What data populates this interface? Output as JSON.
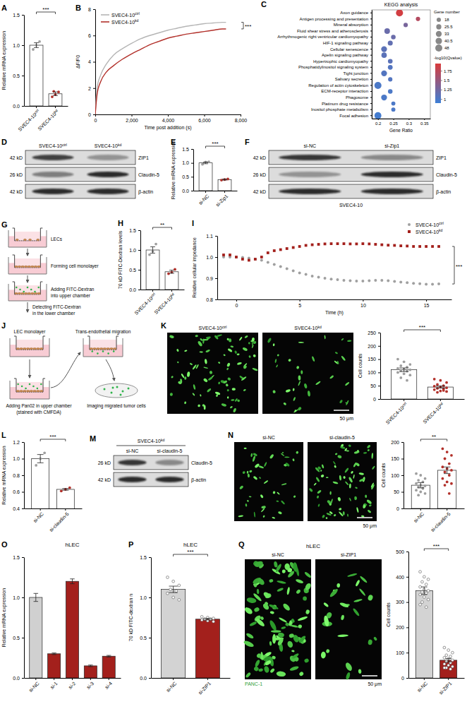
{
  "chart_data": [
    {
      "panel": "A",
      "type": "bar",
      "categories": [
        "SVEC4-10ctrl",
        "SVEC4-10kd"
      ],
      "values": [
        1.0,
        0.2
      ],
      "errors": [
        0.04,
        0.03
      ],
      "points": [
        [
          0.93,
          1.0,
          1.06
        ],
        [
          0.15,
          0.19,
          0.23,
          0.24
        ]
      ],
      "colors": [
        "#9e9e9e",
        "#b2302a"
      ],
      "y_label": "Relative mRNA expression",
      "ylim": [
        0,
        1.5
      ],
      "yticks": [
        {
          "value": 0,
          "label": "0.0"
        },
        {
          "value": 0.5,
          "label": "0.5"
        },
        {
          "value": 1,
          "label": "1.0"
        },
        {
          "value": 1.5,
          "label": "1.5"
        }
      ],
      "annotation": "***"
    },
    {
      "panel": "B",
      "type": "line",
      "x": [
        0,
        100,
        300,
        600,
        1000,
        1500,
        2000,
        2500,
        3000,
        3500,
        4000,
        4500,
        5000,
        5500,
        6000,
        6500,
        7000,
        7200
      ],
      "series": [
        {
          "name": "SVEC4-10ctrl",
          "color": "#b5b5b5",
          "values": [
            0,
            2.0,
            3.0,
            3.8,
            4.5,
            5.0,
            5.4,
            5.75,
            6.0,
            6.2,
            6.4,
            6.55,
            6.7,
            6.8,
            6.9,
            6.95,
            7.0,
            7.0
          ]
        },
        {
          "name": "SVEC4-10kd",
          "color": "#b2302a",
          "values": [
            0,
            1.5,
            2.5,
            3.2,
            3.7,
            4.2,
            4.6,
            4.95,
            5.3,
            5.55,
            5.8,
            5.95,
            6.1,
            6.2,
            6.3,
            6.4,
            6.5,
            6.5
          ]
        }
      ],
      "x_label": "Time post addition (s)",
      "y_label": "ΔF/F0",
      "xlim": [
        0,
        8000
      ],
      "xticks": [
        0,
        {
          "value": 2000,
          "label": "2,000"
        },
        {
          "value": 4000,
          "label": "4,000"
        },
        {
          "value": 6000,
          "label": "6,000"
        },
        {
          "value": 8000,
          "label": "8,000"
        }
      ],
      "ylim": [
        0,
        8
      ],
      "yticks": [
        0,
        2,
        4,
        6,
        8
      ],
      "legend": "upper left",
      "annotation": "***"
    },
    {
      "panel": "C",
      "type": "bubble",
      "title": "KEGG analysis",
      "orientation": "horizontal",
      "categories": [
        "Axon guidance",
        "Antigen processing and presentation",
        "Mineral absorption",
        "Fluid shear stress and atherosclerosis",
        "Arrhythmogenic right ventricular cardiomyopathy",
        "HIF-1 signaling pathway",
        "Cellular senescence",
        "Apelin signaling pathway",
        "Hypertrophic cardiomyopathy",
        "Phosphatidylinositol signaling system",
        "Tight junction",
        "Salivary secretion",
        "Regulation of actin cytoskeleton",
        "ECM-receptor interaction",
        "Phagosome",
        "Platinum drug resistance",
        "Inositol phosphate metabolism",
        "Focal adhesion"
      ],
      "values": [
        0.27,
        0.33,
        0.29,
        0.23,
        0.25,
        0.24,
        0.22,
        0.22,
        0.24,
        0.24,
        0.22,
        0.24,
        0.2,
        0.24,
        0.22,
        0.25,
        0.25,
        0.2
      ],
      "sizes": [
        48,
        18,
        18,
        30,
        20,
        24,
        33,
        28,
        21,
        22,
        33,
        18,
        48,
        20,
        33,
        16,
        16,
        46
      ],
      "color_values": [
        1.9,
        1.7,
        1.3,
        1.2,
        1.2,
        1.15,
        1.1,
        1.1,
        1.1,
        1.05,
        1.05,
        1.05,
        1.0,
        1.0,
        1.0,
        1.0,
        1.0,
        0.95
      ],
      "x_label": "Gene Ratio",
      "xlim": [
        0.18,
        0.37
      ],
      "xticks": [
        0.2,
        0.25,
        0.3,
        0.35
      ],
      "size_title": "Gene number",
      "size_legend": [
        18,
        25.5,
        33,
        40.5,
        48
      ],
      "color_title": "-log10(Qvalue)",
      "colorbar_lim": [
        0.9,
        1.95
      ],
      "colorbar_ticks": [
        1,
        1.25,
        1.5,
        1.75
      ]
    },
    {
      "panel": "E",
      "type": "bar",
      "categories": [
        "si-NC",
        "si-Zip1"
      ],
      "values": [
        1.0,
        0.4
      ],
      "errors": [
        0.03,
        0.02
      ],
      "points": [
        [
          0.95,
          1.03,
          1.04
        ],
        [
          0.38,
          0.4,
          0.42
        ]
      ],
      "colors": [
        "#9e9e9e",
        "#b2302a"
      ],
      "y_label": "Relative mRNA expression",
      "ylim": [
        0,
        1.5
      ],
      "yticks": [
        {
          "value": 0,
          "label": "0.0"
        },
        {
          "value": 0.5,
          "label": "0.5"
        },
        {
          "value": 1,
          "label": "1.0"
        },
        {
          "value": 1.5,
          "label": "1.5"
        }
      ],
      "annotation": "***"
    },
    {
      "panel": "H",
      "type": "bar",
      "categories": [
        "SVEC4-10ctrl",
        "SVEC4-10kd"
      ],
      "values": [
        1.0,
        0.45
      ],
      "errors": [
        0.08,
        0.04
      ],
      "points": [
        [
          0.88,
          0.97,
          1.15
        ],
        [
          0.4,
          0.44,
          0.51
        ]
      ],
      "colors": [
        "#9e9e9e",
        "#b2302a"
      ],
      "y_label": "70 kD FITC-Dextran levels",
      "ylim": [
        0,
        1.5
      ],
      "yticks": [
        {
          "value": 0,
          "label": "0.0"
        },
        {
          "value": 0.5,
          "label": "0.5"
        },
        {
          "value": 1,
          "label": "1.0"
        },
        {
          "value": 1.5,
          "label": "1.5"
        }
      ],
      "annotation": "**"
    },
    {
      "panel": "I",
      "type": "line",
      "x": [
        -1,
        -0.5,
        0,
        0.5,
        1,
        1.5,
        2,
        2.5,
        3,
        3.5,
        4,
        4.5,
        5,
        5.5,
        6,
        6.5,
        7,
        7.5,
        8,
        8.5,
        9,
        9.5,
        10,
        10.5,
        11,
        11.5,
        12,
        12.5,
        13,
        13.5,
        14,
        14.5,
        15,
        15.5,
        16
      ],
      "series": [
        {
          "name": "SVEC4-10ctrl",
          "color": "#a0a0a0",
          "marker": "circle",
          "values": [
            1.0,
            1.0,
            1.0,
            0.998,
            0.995,
            0.99,
            0.985,
            0.975,
            0.965,
            0.955,
            0.945,
            0.935,
            0.925,
            0.918,
            0.91,
            0.905,
            0.9,
            0.896,
            0.893,
            0.89,
            0.888,
            0.887,
            0.887,
            0.888,
            0.89,
            0.89,
            0.888,
            0.885,
            0.882,
            0.879,
            0.876,
            0.874,
            0.872,
            0.872,
            0.873
          ]
        },
        {
          "name": "SVEC4-10kd",
          "color": "#a3201c",
          "marker": "square",
          "values": [
            1.01,
            1.01,
            1.0,
            0.99,
            0.985,
            0.99,
            1.0,
            1.02,
            1.03,
            1.035,
            1.04,
            1.045,
            1.05,
            1.055,
            1.058,
            1.06,
            1.062,
            1.063,
            1.063,
            1.063,
            1.062,
            1.062,
            1.063,
            1.062,
            1.06,
            1.058,
            1.056,
            1.055,
            1.053,
            1.052,
            1.05,
            1.05,
            1.05,
            1.05,
            1.05
          ]
        }
      ],
      "x_label": "Time (h)",
      "y_label": "Relative cellular impedance",
      "xlim": [
        -1.5,
        17
      ],
      "xticks": [
        0,
        5,
        10,
        15
      ],
      "ylim": [
        0.8,
        1.1
      ],
      "yticks": [
        0.8,
        0.9,
        {
          "value": 1,
          "label": "1.0"
        },
        1.1
      ],
      "legend": "upper right",
      "annotation": "***"
    },
    {
      "type": "bar",
      "categories": [
        "SVEC4-10ctrl",
        "SVEC4-10kd"
      ],
      "values": [
        110,
        45
      ],
      "errors": [
        7,
        4
      ],
      "points": [
        [
          150,
          140,
          130,
          125,
          120,
          115,
          112,
          110,
          108,
          105,
          100,
          95,
          90,
          80,
          70
        ],
        [
          75,
          70,
          62,
          55,
          50,
          48,
          45,
          42,
          40,
          38,
          35,
          30,
          28,
          25,
          32
        ]
      ],
      "colors": [
        "#9e9e9e",
        "#b2302a"
      ],
      "y_label": "Cell counts",
      "ylim": [
        0,
        250
      ],
      "yticks": [
        0,
        50,
        100,
        150,
        200,
        250
      ],
      "annotation": "***"
    },
    {
      "panel": "L",
      "type": "bar",
      "categories": [
        "si-NC",
        "si-claudin-5"
      ],
      "values": [
        1.0,
        0.63
      ],
      "errors": [
        0.05,
        0.01
      ],
      "points": [
        [
          0.92,
          1.0,
          1.07
        ],
        [
          0.61,
          0.63,
          0.65
        ]
      ],
      "colors": [
        "#9e9e9e",
        "#b2302a"
      ],
      "y_label": "Relative mRNA expression",
      "ylim": [
        0.4,
        1.2
      ],
      "yticks": [
        0.4,
        0.6,
        0.8,
        {
          "value": 1,
          "label": "1.0"
        },
        1.2
      ],
      "annotation": "***"
    },
    {
      "type": "bar",
      "categories": [
        "si-NC",
        "si-claudin-5"
      ],
      "values": [
        70,
        115
      ],
      "errors": [
        8,
        10
      ],
      "points": [
        [
          105,
          100,
          90,
          85,
          80,
          75,
          70,
          68,
          65,
          60,
          55,
          50,
          45,
          40,
          62
        ],
        [
          180,
          170,
          160,
          150,
          135,
          125,
          120,
          115,
          110,
          100,
          90,
          80,
          75,
          70,
          45
        ]
      ],
      "colors": [
        "#9e9e9e",
        "#b2302a"
      ],
      "y_label": "Cell counts",
      "ylim": [
        0,
        200
      ],
      "yticks": [
        0,
        50,
        100,
        150,
        200
      ],
      "annotation": "**"
    },
    {
      "panel": "O",
      "type": "bar",
      "title": "hLEC",
      "categories": [
        "si-NC",
        "si-1",
        "si-2",
        "si-3",
        "si-4"
      ],
      "values": [
        1.0,
        0.3,
        1.2,
        0.15,
        0.27
      ],
      "errors": [
        0.05,
        0.01,
        0.03,
        0.01,
        0.01
      ],
      "colors": [
        "#d0d0d0",
        "#a3201c",
        "#a3201c",
        "#a3201c",
        "#a3201c"
      ],
      "marker": "open",
      "y_label": "Relative mRNA expression",
      "ylim": [
        0,
        1.5
      ],
      "yticks": [
        {
          "value": 0,
          "label": "0.0"
        },
        {
          "value": 0.5,
          "label": "0.5"
        },
        {
          "value": 1,
          "label": "1.0"
        },
        {
          "value": 1.5,
          "label": "1.5"
        }
      ]
    },
    {
      "panel": "P",
      "type": "bar",
      "title": "hLEC",
      "categories": [
        "si-NC",
        "si-ZIP1"
      ],
      "values": [
        1.1,
        0.73
      ],
      "errors": [
        0.04,
        0.01
      ],
      "points": [
        [
          1.25,
          1.2,
          1.15,
          1.1,
          1.08,
          1.05,
          1.0,
          0.97
        ],
        [
          0.76,
          0.75,
          0.74,
          0.73,
          0.73,
          0.72,
          0.71,
          0.7
        ]
      ],
      "colors": [
        "#d3d3d3",
        "#a3201c"
      ],
      "marker": "open",
      "y_label": "70 kD FITC-dextran n",
      "ylim": [
        0,
        1.5
      ],
      "yticks": [
        {
          "value": 0,
          "label": "0.0"
        },
        {
          "value": 0.5,
          "label": "0.5"
        },
        {
          "value": 1,
          "label": "1.0"
        },
        {
          "value": 1.5,
          "label": "1.5"
        }
      ],
      "annotation": "***"
    },
    {
      "type": "bar",
      "categories": [
        "si-NC",
        "si-ZIP1"
      ],
      "values": [
        345,
        70
      ],
      "errors": [
        15,
        7
      ],
      "points": [
        [
          420,
          400,
          390,
          380,
          370,
          360,
          350,
          345,
          340,
          335,
          330,
          320,
          310,
          300,
          280,
          290
        ],
        [
          120,
          110,
          100,
          90,
          85,
          80,
          75,
          70,
          65,
          60,
          55,
          50,
          45,
          40,
          35,
          40
        ]
      ],
      "colors": [
        "#d3d3d3",
        "#a3201c"
      ],
      "marker": "open",
      "y_label": "Cell counts",
      "ylim": [
        0,
        500
      ],
      "yticks": [
        0,
        100,
        200,
        300,
        400,
        500
      ],
      "annotation": "***"
    }
  ],
  "blots": [
    {
      "panel": "D",
      "lanes": [
        "SVEC4-10ctrl",
        "SVEC4-10kd"
      ],
      "rows": [
        {
          "size_label": "42 kD",
          "name": "ZIP1",
          "intensity": [
            0.75,
            0.35
          ]
        },
        {
          "size_label": "26 kD",
          "name": "Claudin-5",
          "intensity": [
            0.45,
            0.85
          ]
        },
        {
          "size_label": "42 kD",
          "name": "β-actin",
          "intensity": [
            0.85,
            0.85
          ]
        }
      ]
    },
    {
      "panel": "F",
      "lanes": [
        "si-NC",
        "si-Zip1"
      ],
      "rows": [
        {
          "size_label": "42 kD",
          "name": "ZIP1",
          "intensity": [
            0.8,
            0.4
          ]
        },
        {
          "size_label": "26 kD",
          "name": "Claudin-5",
          "intensity": [
            0.35,
            0.85
          ]
        },
        {
          "size_label": "42 kD",
          "name": "β-actin",
          "intensity": [
            0.85,
            0.85
          ]
        }
      ],
      "caption": "SVEC4-10"
    },
    {
      "panel": "M",
      "header": "SVEC4-10kd",
      "lanes": [
        "si-NC",
        "si-claudin-5"
      ],
      "rows": [
        {
          "size_label": "26 kD",
          "name": "Claudin-5",
          "intensity": [
            0.8,
            0.4
          ]
        },
        {
          "size_label": "42 kD",
          "name": "β-actin",
          "intensity": [
            0.85,
            0.85
          ]
        }
      ]
    }
  ],
  "diagrams": [
    {
      "panel": "G",
      "steps": [
        [
          "LECs"
        ],
        [
          "Forming cell monolayer"
        ],
        [
          "Adding FITC-Dextran",
          "into upper chamber"
        ],
        [
          "Detecting FITC-Dextran",
          "in the lower chamber"
        ]
      ]
    },
    {
      "panel": "J",
      "steps": [
        [
          "LEC monolayer"
        ],
        [
          "Adding Pan02 in upper chamber",
          "(stained with CMFDA)"
        ],
        [
          "Trans-endothelial migration"
        ],
        [
          "Imaging migrated tumor cells"
        ]
      ]
    }
  ],
  "images": [
    {
      "panel": "K",
      "labels": [
        "SVEC4-10ctrl",
        "SVEC4-10kd"
      ],
      "scale_bar": "50 μm"
    },
    {
      "panel": "N",
      "labels": [
        "si-NC",
        "si-claudin-5"
      ],
      "scale_bar": "50 μm"
    },
    {
      "panel": "Q",
      "title": "hLEC",
      "labels": [
        "si-NC",
        "si-ZIP1"
      ],
      "stain": "PANC-1",
      "scale_bar": "50 μm"
    }
  ]
}
